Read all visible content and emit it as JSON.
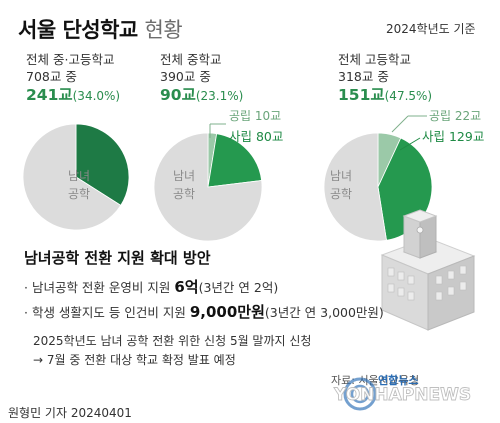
{
  "header": {
    "title": "서울 단성학교",
    "title_suffix": "현황",
    "baseline": "2024학년도 기준"
  },
  "groups": [
    {
      "label": "전체 중·고등학교",
      "total": "708교 중",
      "highlight": "241교",
      "pct": "(34.0%)"
    },
    {
      "label": "전체 중학교",
      "total": "390교 중",
      "highlight": "90교",
      "pct": "(23.1%)"
    },
    {
      "label": "전체 고등학교",
      "total": "318교 중",
      "highlight": "151교",
      "pct": "(47.5%)"
    }
  ],
  "chart_data": [
    {
      "type": "pie",
      "title": "전체 중·고등학교",
      "slices": [
        {
          "label": "",
          "value": 34.0,
          "color": "#1e7a45"
        },
        {
          "label": "남녀공학",
          "value": 66.0,
          "color": "#dcdcdc"
        }
      ]
    },
    {
      "type": "pie",
      "title": "전체 중학교",
      "slices": [
        {
          "label": "공립 10교",
          "value": 10,
          "color": "#9bc9a8"
        },
        {
          "label": "사립 80교",
          "value": 80,
          "color": "#25994f"
        },
        {
          "label": "남녀공학",
          "value": 300,
          "color": "#dcdcdc"
        }
      ]
    },
    {
      "type": "pie",
      "title": "전체 고등학교",
      "slices": [
        {
          "label": "공립 22교",
          "value": 22,
          "color": "#9bc9a8"
        },
        {
          "label": "사립 129교",
          "value": 129,
          "color": "#25994f"
        },
        {
          "label": "남녀공학",
          "value": 167,
          "color": "#dcdcdc"
        }
      ]
    }
  ],
  "pie_labels": {
    "coed_top": "남녀",
    "coed_bottom": "공학"
  },
  "plan": {
    "title": "남녀공학 전환 지원 확대 방안",
    "b1_prefix": "· 남녀공학 전환 운영비 지원 ",
    "b1_bold": "6억",
    "b1_suffix": "(3년간 연 2억)",
    "b2_prefix": "· 학생 생활지도 등 인건비 지원 ",
    "b2_bold": "9,000만원",
    "b2_suffix": "(3년간 연 3,000만원)",
    "note1": "2025학년도 남녀 공학 전환 위한 신청 5월 말까지 신청",
    "note2": "→ 7월 중 전환 대상 학교 확정 발표 예정"
  },
  "footer": {
    "source": "자료: 서울시교육청",
    "reporter": "원형민 기자  20240401",
    "logo_kr": "연합뉴스",
    "logo_en": "YONHAPNEWS"
  }
}
